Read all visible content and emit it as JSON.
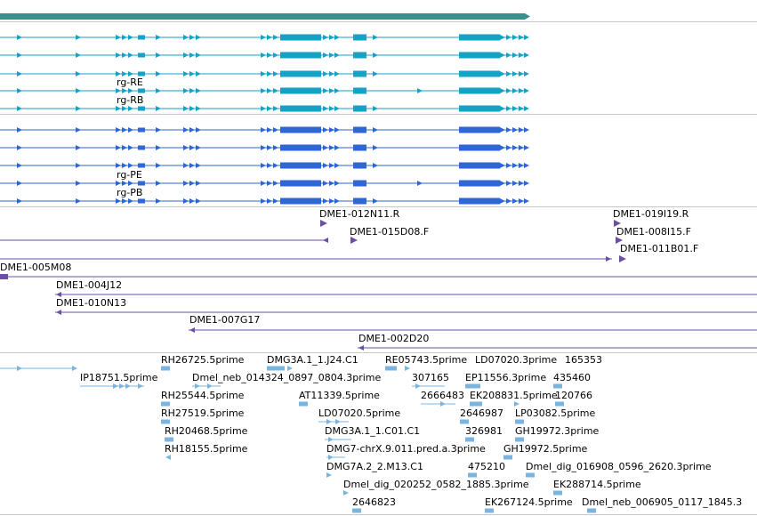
{
  "colors": {
    "gene": "#3a8f8f",
    "transcript": "#16a2c4",
    "protein": "#2f66d6",
    "bac": "#6a4fa3",
    "est": "#7ab5e0",
    "divider": "#c8c8c8"
  },
  "tracks": {
    "transcripts": {
      "labels": [
        "rg-RE",
        "rg-RB"
      ]
    },
    "proteins": {
      "labels": [
        "rg-PE",
        "rg-PB"
      ]
    },
    "bac_ends": {
      "labels": [
        "DME1-012N11.R",
        "DME1-019I19.R",
        "DME1-015D08.F",
        "DME1-008I15.F",
        "DME1-011B01.F",
        "DME1-005M08",
        "DME1-004J12",
        "DME1-010N13",
        "DME1-007G17",
        "DME1-002D20"
      ]
    },
    "est": {
      "labels": [
        "RH26725.5prime",
        "DMG3A.1_1.J24.C1",
        "RE05743.5prime",
        "LD07020.3prime",
        "165353",
        "IP18751.5prime",
        "Dmel_neb_014324_0897_0804.3prime",
        "307165",
        "EP11556.3prime",
        "435460",
        "RH25544.5prime",
        "AT11339.5prime",
        "2666483",
        "EK208831.5prime",
        "120766",
        "RH27519.5prime",
        "LD07020.5prime",
        "2646987",
        "LP03082.5prime",
        "RH20468.5prime",
        "DMG3A.1_1.C01.C1",
        "326981",
        "GH19972.3prime",
        "RH18155.5prime",
        "DMG7-chrX.9.011.pred.a.3prime",
        "GH19972.5prime",
        "DMG7A.2_2.M13.C1",
        "475210",
        "Dmel_dig_016908_0596_2620.3prime",
        "Dmel_dig_020252_0582_1885.3prime",
        "EK288714.5prime",
        "2646823",
        "EK267124.5prime",
        "Dmel_neb_006905_0117_1845.3"
      ]
    }
  }
}
